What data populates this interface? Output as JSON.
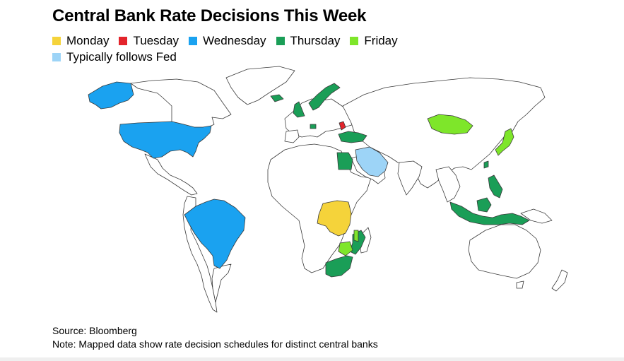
{
  "title": "Central Bank Rate Decisions This Week",
  "legend": [
    {
      "label": "Monday",
      "color": "#f5d33a"
    },
    {
      "label": "Tuesday",
      "color": "#e3242b"
    },
    {
      "label": "Wednesday",
      "color": "#1aa2f0"
    },
    {
      "label": "Thursday",
      "color": "#1a9e57"
    },
    {
      "label": "Friday",
      "color": "#7ee62a"
    },
    {
      "label": "Typically follows Fed",
      "color": "#9dd4f7"
    }
  ],
  "map": {
    "other_land_color": "#ffffff",
    "border_color": "#3a3a3a",
    "regions": [
      {
        "name": "United States",
        "day": "Wednesday"
      },
      {
        "name": "Alaska (United States)",
        "day": "Wednesday"
      },
      {
        "name": "Brazil",
        "day": "Wednesday"
      },
      {
        "name": "Democratic Republic of the Congo",
        "day": "Monday"
      },
      {
        "name": "Moldova",
        "day": "Tuesday"
      },
      {
        "name": "Norway",
        "day": "Thursday"
      },
      {
        "name": "Iceland",
        "day": "Thursday"
      },
      {
        "name": "United Kingdom",
        "day": "Thursday"
      },
      {
        "name": "Switzerland",
        "day": "Thursday"
      },
      {
        "name": "Turkey",
        "day": "Thursday"
      },
      {
        "name": "Egypt",
        "day": "Thursday"
      },
      {
        "name": "South Africa",
        "day": "Thursday"
      },
      {
        "name": "Mozambique",
        "day": "Thursday"
      },
      {
        "name": "Taiwan",
        "day": "Thursday"
      },
      {
        "name": "Philippines",
        "day": "Thursday"
      },
      {
        "name": "Indonesia",
        "day": "Thursday"
      },
      {
        "name": "Mongolia",
        "day": "Friday"
      },
      {
        "name": "Japan",
        "day": "Friday"
      },
      {
        "name": "Zimbabwe",
        "day": "Friday"
      },
      {
        "name": "Malawi",
        "day": "Friday"
      },
      {
        "name": "Saudi Arabia",
        "day": "Typically follows Fed"
      }
    ]
  },
  "footer": {
    "source": "Source: Bloomberg",
    "note": "Note: Mapped data show rate decision schedules for distinct central banks"
  }
}
